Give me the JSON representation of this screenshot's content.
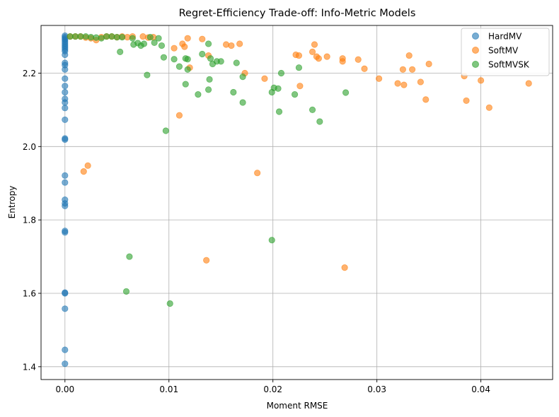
{
  "chart_data": {
    "type": "scatter",
    "title": "Regret-Efficiency Trade-off: Info-Metric Models",
    "xlabel": "Moment RMSE",
    "ylabel": "Entropy",
    "xlim": [
      -0.0023,
      0.0469
    ],
    "ylim": [
      1.365,
      2.33
    ],
    "xticks": [
      0.0,
      0.01,
      0.02,
      0.03,
      0.04
    ],
    "xtick_labels": [
      "0.00",
      "0.01",
      "0.02",
      "0.03",
      "0.04"
    ],
    "yticks": [
      1.4,
      1.6,
      1.8,
      2.0,
      2.2
    ],
    "ytick_labels": [
      "1.4",
      "1.6",
      "1.8",
      "2.0",
      "2.2"
    ],
    "grid": true,
    "legend_position": "top-right",
    "series": [
      {
        "name": "HardMV",
        "color": "#1f77b4",
        "points": [
          [
            0,
            2.302
          ],
          [
            0,
            2.298
          ],
          [
            0,
            2.294
          ],
          [
            0,
            2.29
          ],
          [
            0,
            2.285
          ],
          [
            0,
            2.28
          ],
          [
            0,
            2.275
          ],
          [
            0,
            2.27
          ],
          [
            0,
            2.265
          ],
          [
            0,
            2.26
          ],
          [
            0,
            2.25
          ],
          [
            0,
            2.228
          ],
          [
            0,
            2.222
          ],
          [
            0,
            2.21
          ],
          [
            0,
            2.185
          ],
          [
            0,
            2.165
          ],
          [
            0,
            2.148
          ],
          [
            0,
            2.13
          ],
          [
            0,
            2.12
          ],
          [
            0,
            2.105
          ],
          [
            0,
            2.073
          ],
          [
            0,
            2.022
          ],
          [
            0,
            2.019
          ],
          [
            0,
            1.921
          ],
          [
            0,
            1.902
          ],
          [
            0,
            1.855
          ],
          [
            0,
            1.845
          ],
          [
            0,
            1.838
          ],
          [
            0,
            1.77
          ],
          [
            0,
            1.766
          ],
          [
            0,
            1.602
          ],
          [
            0,
            1.6
          ],
          [
            0,
            1.558
          ],
          [
            0,
            1.446
          ],
          [
            0,
            1.408
          ]
        ]
      },
      {
        "name": "SoftMV",
        "color": "#ff7f0e",
        "points": [
          [
            0.0005,
            2.3
          ],
          [
            0.001,
            2.3
          ],
          [
            0.0015,
            2.3
          ],
          [
            0.002,
            2.297
          ],
          [
            0.0025,
            2.295
          ],
          [
            0.003,
            2.29
          ],
          [
            0.0035,
            2.298
          ],
          [
            0.004,
            2.3
          ],
          [
            0.0045,
            2.3
          ],
          [
            0.005,
            2.298
          ],
          [
            0.0055,
            2.3
          ],
          [
            0.006,
            2.298
          ],
          [
            0.0065,
            2.3
          ],
          [
            0.0075,
            2.3
          ],
          [
            0.008,
            2.297
          ],
          [
            0.0085,
            2.298
          ],
          [
            0.0018,
            1.932
          ],
          [
            0.0022,
            1.948
          ],
          [
            0.011,
            2.085
          ],
          [
            0.0113,
            2.28
          ],
          [
            0.0115,
            2.272
          ],
          [
            0.0118,
            2.295
          ],
          [
            0.0105,
            2.268
          ],
          [
            0.012,
            2.215
          ],
          [
            0.0132,
            2.293
          ],
          [
            0.0138,
            2.248
          ],
          [
            0.0155,
            2.278
          ],
          [
            0.016,
            2.275
          ],
          [
            0.0168,
            2.28
          ],
          [
            0.0173,
            2.2
          ],
          [
            0.0136,
            1.69
          ],
          [
            0.0185,
            1.928
          ],
          [
            0.0192,
            2.185
          ],
          [
            0.0222,
            2.25
          ],
          [
            0.0225,
            2.248
          ],
          [
            0.0226,
            2.165
          ],
          [
            0.0238,
            2.258
          ],
          [
            0.024,
            2.278
          ],
          [
            0.0242,
            2.245
          ],
          [
            0.0244,
            2.24
          ],
          [
            0.0252,
            2.245
          ],
          [
            0.0267,
            2.24
          ],
          [
            0.0267,
            2.232
          ],
          [
            0.0269,
            1.67
          ],
          [
            0.0282,
            2.237
          ],
          [
            0.0288,
            2.212
          ],
          [
            0.0302,
            2.185
          ],
          [
            0.032,
            2.172
          ],
          [
            0.0325,
            2.21
          ],
          [
            0.0326,
            2.168
          ],
          [
            0.0331,
            2.248
          ],
          [
            0.0334,
            2.21
          ],
          [
            0.0342,
            2.176
          ],
          [
            0.0347,
            2.128
          ],
          [
            0.035,
            2.225
          ],
          [
            0.0384,
            2.192
          ],
          [
            0.0386,
            2.125
          ],
          [
            0.04,
            2.18
          ],
          [
            0.0408,
            2.106
          ],
          [
            0.0446,
            2.172
          ]
        ]
      },
      {
        "name": "SoftMVSK",
        "color": "#2ca02c",
        "points": [
          [
            0.0005,
            2.3
          ],
          [
            0.001,
            2.3
          ],
          [
            0.0015,
            2.3
          ],
          [
            0.002,
            2.3
          ],
          [
            0.0025,
            2.298
          ],
          [
            0.003,
            2.297
          ],
          [
            0.0035,
            2.295
          ],
          [
            0.004,
            2.3
          ],
          [
            0.0045,
            2.3
          ],
          [
            0.005,
            2.298
          ],
          [
            0.0055,
            2.298
          ],
          [
            0.0065,
            2.295
          ],
          [
            0.007,
            2.282
          ],
          [
            0.0073,
            2.275
          ],
          [
            0.0076,
            2.28
          ],
          [
            0.0082,
            2.298
          ],
          [
            0.0086,
            2.283
          ],
          [
            0.009,
            2.295
          ],
          [
            0.0093,
            2.275
          ],
          [
            0.0095,
            2.243
          ],
          [
            0.0053,
            2.258
          ],
          [
            0.0066,
            2.278
          ],
          [
            0.0079,
            2.195
          ],
          [
            0.0097,
            2.043
          ],
          [
            0.0105,
            2.238
          ],
          [
            0.011,
            2.218
          ],
          [
            0.0116,
            2.24
          ],
          [
            0.0118,
            2.238
          ],
          [
            0.0116,
            2.17
          ],
          [
            0.0118,
            2.21
          ],
          [
            0.0128,
            2.142
          ],
          [
            0.0132,
            2.252
          ],
          [
            0.0138,
            2.28
          ],
          [
            0.0138,
            2.155
          ],
          [
            0.0139,
            2.183
          ],
          [
            0.014,
            2.24
          ],
          [
            0.0142,
            2.225
          ],
          [
            0.0146,
            2.232
          ],
          [
            0.015,
            2.232
          ],
          [
            0.0162,
            2.148
          ],
          [
            0.0165,
            2.228
          ],
          [
            0.0171,
            2.19
          ],
          [
            0.0171,
            2.12
          ],
          [
            0.0199,
            2.148
          ],
          [
            0.0201,
            2.16
          ],
          [
            0.0205,
            2.158
          ],
          [
            0.0206,
            2.095
          ],
          [
            0.0208,
            2.2
          ],
          [
            0.0221,
            2.142
          ],
          [
            0.0225,
            2.215
          ],
          [
            0.0238,
            2.1
          ],
          [
            0.0245,
            2.068
          ],
          [
            0.027,
            2.147
          ],
          [
            0.0062,
            1.7
          ],
          [
            0.0059,
            1.605
          ],
          [
            0.0101,
            1.572
          ],
          [
            0.0199,
            1.745
          ]
        ]
      }
    ]
  }
}
